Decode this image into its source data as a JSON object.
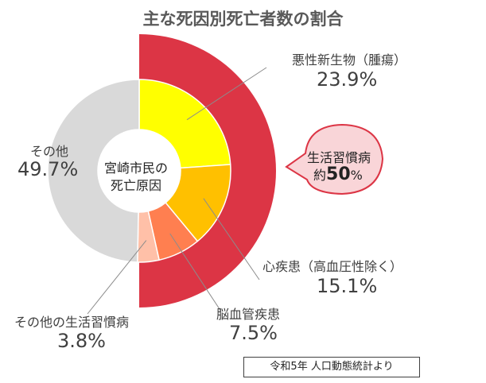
{
  "chart_data": {
    "type": "pie",
    "title": "主な死因別死亡者数の割合",
    "center_label": [
      "宮崎市民の",
      "死亡原因"
    ],
    "slices": [
      {
        "name": "悪性新生物（腫瘍）",
        "value": 23.9,
        "display": "23.9%",
        "color": "#FFFF00"
      },
      {
        "name": "心疾患（高血圧性除く）",
        "value": 15.1,
        "display": "15.1%",
        "color": "#FFC000"
      },
      {
        "name": "脳血管疾患",
        "value": 7.5,
        "display": "7.5%",
        "color": "#FF7F50"
      },
      {
        "name": "その他の生活習慣病",
        "value": 3.8,
        "display": "3.8%",
        "color": "#FFC0A8"
      },
      {
        "name": "その他",
        "value": 49.7,
        "display": "49.7%",
        "color": "#D9D9D9"
      }
    ],
    "outer_ring": {
      "value": 50,
      "color": "#DC3545"
    },
    "callout": {
      "line1": "生活習慣病",
      "line2_prefix": "約",
      "line2_value": "50",
      "line2_suffix": "%"
    },
    "source": "令和5年 人口動態統計より"
  }
}
